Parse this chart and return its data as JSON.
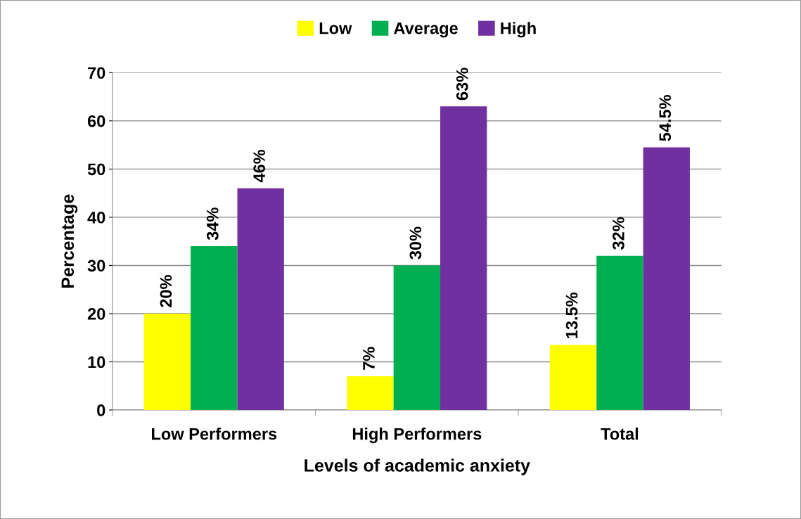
{
  "chart_data": {
    "type": "bar",
    "xlabel": "Levels of academic anxiety",
    "ylabel": "Percentage",
    "categories": [
      "Low Performers",
      "High Performers",
      "Total"
    ],
    "series": [
      {
        "name": "Low",
        "color": "#ffff00",
        "values": [
          20,
          7,
          13.5
        ],
        "value_labels": [
          "20%",
          "7%",
          "13.5%"
        ]
      },
      {
        "name": "Average",
        "color": "#00b050",
        "values": [
          34,
          30,
          32
        ],
        "value_labels": [
          "34%",
          "30%",
          "32%"
        ]
      },
      {
        "name": "High",
        "color": "#7030a0",
        "values": [
          46,
          63,
          54.5
        ],
        "value_labels": [
          "46%",
          "63%",
          "54.5%"
        ]
      }
    ],
    "ylim": [
      0,
      70
    ],
    "yticks": [
      0,
      10,
      20,
      30,
      40,
      50,
      60,
      70
    ],
    "grid": "y",
    "legend": "top"
  }
}
